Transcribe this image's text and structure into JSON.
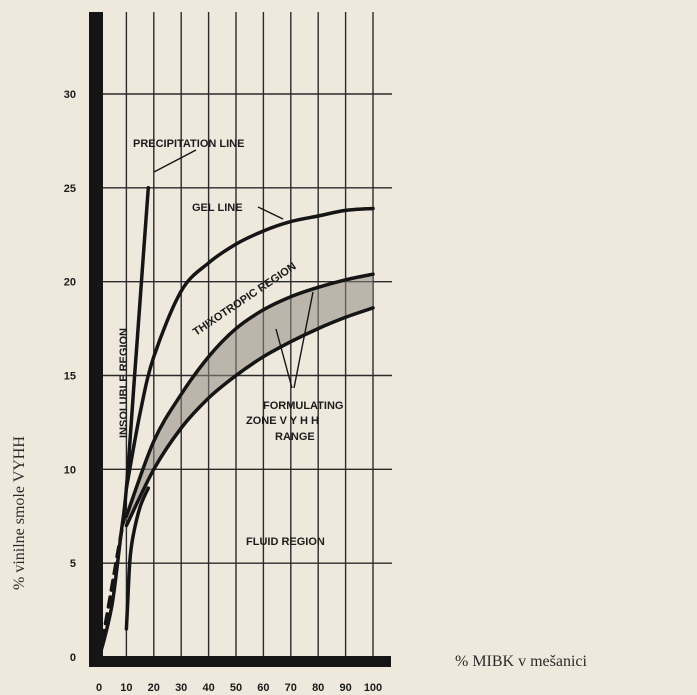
{
  "chart_data": {
    "type": "line",
    "xlabel": "% MIBK v mešanici",
    "ylabel": "% vinilne smole VYHH",
    "xlim": [
      0,
      100
    ],
    "ylim": [
      0,
      30
    ],
    "x_ticks": [
      "0",
      "10",
      "20",
      "30",
      "40",
      "50",
      "60",
      "70",
      "80",
      "90",
      "100"
    ],
    "y_ticks": [
      "0",
      "5",
      "10",
      "15",
      "20",
      "25",
      "30"
    ],
    "grid": true,
    "series": [
      {
        "name": "PRECIPITATION LINE",
        "style": "solid",
        "x": [
          0,
          2,
          5,
          8,
          10,
          13,
          16,
          18
        ],
        "y": [
          0,
          1,
          3,
          6.5,
          9,
          15,
          21,
          25
        ]
      },
      {
        "name": "GEL LINE",
        "style": "solid",
        "x": [
          10,
          15,
          20,
          30,
          40,
          50,
          60,
          70,
          80,
          90,
          100
        ],
        "y": [
          9,
          13,
          16,
          19.5,
          21,
          22,
          22.7,
          23.2,
          23.5,
          23.8,
          23.9
        ]
      },
      {
        "name": "",
        "style": "solid",
        "x": [
          10,
          20,
          30,
          40,
          50,
          60,
          70,
          80,
          90,
          100
        ],
        "y": [
          7.5,
          11.5,
          14,
          16,
          17.5,
          18.5,
          19.2,
          19.7,
          20.1,
          20.4
        ]
      },
      {
        "name": "",
        "style": "solid",
        "x": [
          10,
          20,
          30,
          40,
          50,
          60,
          70,
          80,
          90,
          100
        ],
        "y": [
          7,
          10,
          12.2,
          13.8,
          15,
          16,
          16.8,
          17.5,
          18.1,
          18.6
        ]
      },
      {
        "name": "",
        "style": "solid",
        "x": [
          10,
          10.5,
          11,
          11.5,
          12.5,
          15,
          18
        ],
        "y": [
          1.5,
          3,
          4.5,
          5.5,
          6.5,
          8,
          9
        ]
      },
      {
        "name": "",
        "style": "dashed",
        "x": [
          0,
          2,
          5,
          8,
          10
        ],
        "y": [
          0,
          1.5,
          4,
          6.5,
          8
        ]
      }
    ],
    "annotations": [
      "PRECIPITATION LINE",
      "GEL LINE",
      "THIXOTROPIC REGION",
      "INSOLUBLE REGION",
      "FORMULATING",
      "ZONE V Y H H",
      "RANGE",
      "FLUID REGION"
    ]
  }
}
